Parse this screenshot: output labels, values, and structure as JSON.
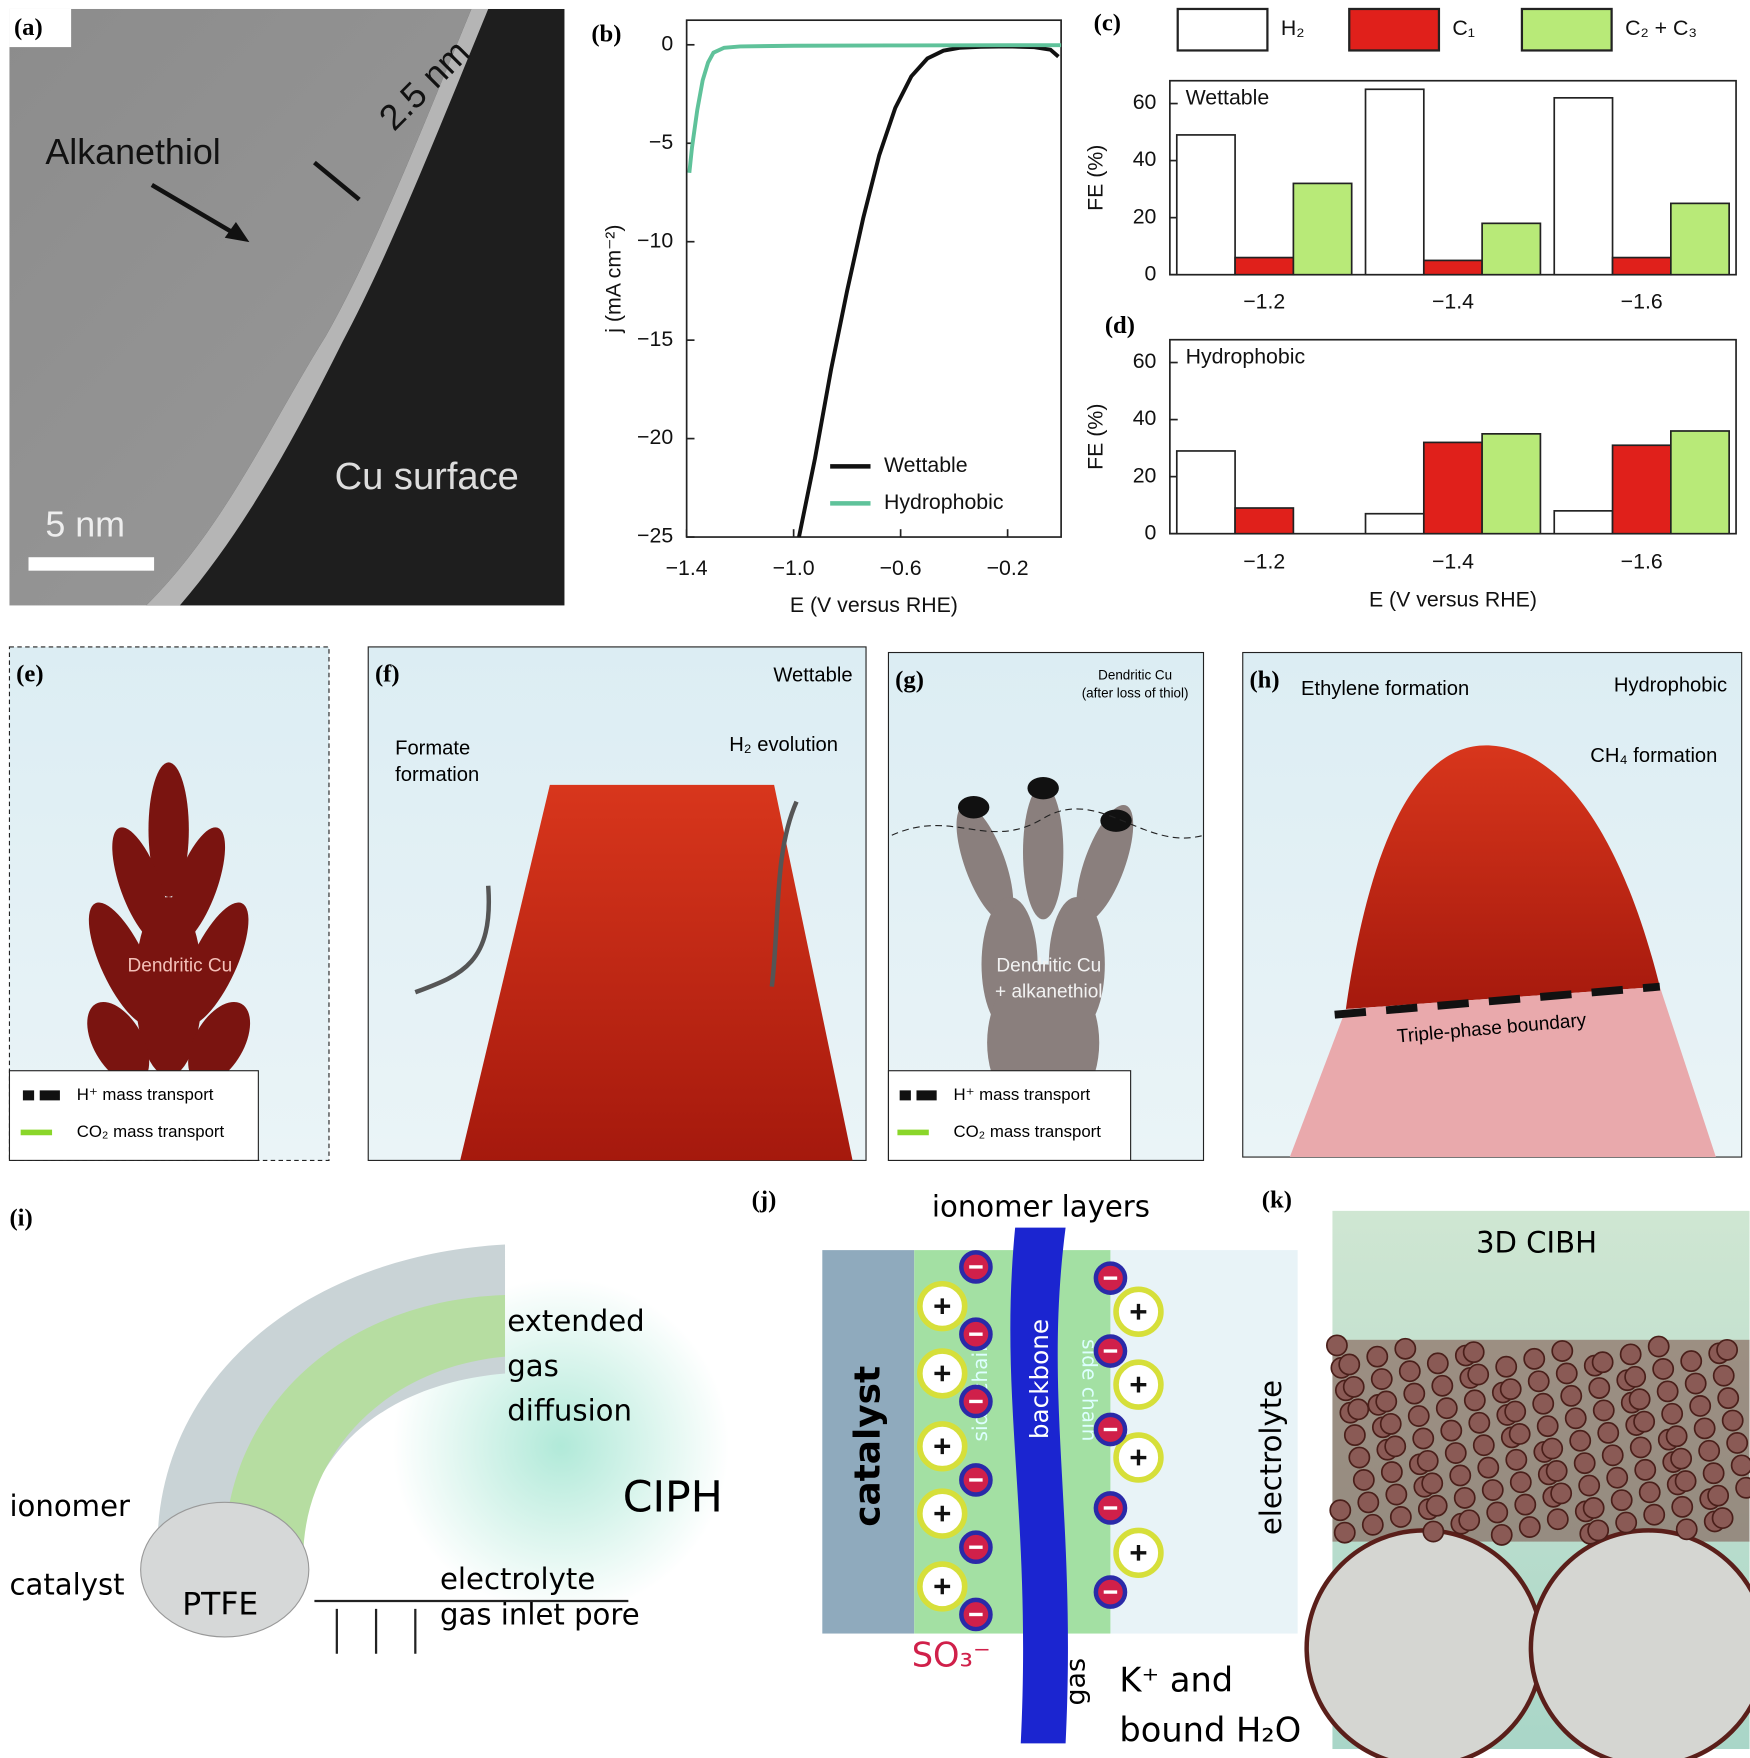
{
  "chart_data": [
    {
      "type": "line",
      "xlim": [
        -1.4,
        0
      ],
      "ylim": [
        -25,
        1.25
      ],
      "xticks": [
        {
          "value": -1.4,
          "label": "−1.4"
        },
        {
          "value": -1.0,
          "label": "−1.0"
        },
        {
          "value": -0.6,
          "label": "−0.6"
        },
        {
          "value": -0.2,
          "label": "−0.2"
        }
      ],
      "yticks": [
        0,
        {
          "value": -5,
          "label": "−5"
        },
        {
          "value": -10,
          "label": "−10"
        },
        {
          "value": -15,
          "label": "−15"
        },
        {
          "value": -20,
          "label": "−20"
        },
        {
          "value": -25,
          "label": "−25"
        }
      ],
      "xlabel": "E (V versus RHE)",
      "ylabel": "j (mA cm⁻²)",
      "series": [
        {
          "name": "Wettable",
          "color": "#111111",
          "x": [
            -0.98,
            -0.92,
            -0.86,
            -0.8,
            -0.74,
            -0.68,
            -0.62,
            -0.56,
            -0.5,
            -0.44,
            -0.38,
            -0.3,
            -0.2,
            -0.1,
            -0.04,
            -0.01
          ],
          "values": [
            -25,
            -21,
            -16.5,
            -12.5,
            -8.8,
            -5.6,
            -3.2,
            -1.6,
            -0.7,
            -0.3,
            -0.15,
            -0.1,
            -0.08,
            -0.12,
            -0.25,
            -0.6
          ]
        },
        {
          "name": "Hydrophobic",
          "color": "#5fc29a",
          "x": [
            -1.39,
            -1.38,
            -1.36,
            -1.34,
            -1.32,
            -1.3,
            -1.26,
            -1.2,
            -1.0,
            -0.6,
            -0.2,
            0
          ],
          "values": [
            -6.5,
            -5.2,
            -3.3,
            -1.8,
            -0.9,
            -0.4,
            -0.15,
            -0.08,
            -0.05,
            -0.03,
            -0.02,
            -0.02
          ]
        }
      ]
    },
    {
      "type": "bar",
      "annotation": "Wettable",
      "ylabel": "FE (%)",
      "ylim": [
        0,
        68
      ],
      "yticks": [
        0,
        20,
        40,
        60
      ],
      "categories": [
        "−1.2",
        "−1.4",
        "−1.6"
      ],
      "series": [
        {
          "name": "H₂",
          "color": "#ffffff",
          "values": [
            49,
            65,
            62
          ]
        },
        {
          "name": "C₁",
          "color": "#e0201b",
          "values": [
            6,
            5,
            6
          ]
        },
        {
          "name": "C₂ + C₃",
          "color": "#b8ea78",
          "values": [
            32,
            18,
            25
          ]
        }
      ]
    },
    {
      "type": "bar",
      "annotation": "Hydrophobic",
      "ylabel": "FE (%)",
      "xlabel": "E (V versus RHE)",
      "ylim": [
        0,
        68
      ],
      "yticks": [
        0,
        20,
        40,
        60
      ],
      "categories": [
        "−1.2",
        "−1.4",
        "−1.6"
      ],
      "series": [
        {
          "color": "#ffffff",
          "values": [
            29,
            7,
            8
          ]
        },
        {
          "color": "#e0201b",
          "values": [
            9,
            32,
            31
          ]
        },
        {
          "color": "#b8ea78",
          "values": [
            null,
            35,
            36
          ]
        }
      ]
    }
  ],
  "panels": {
    "a": {
      "label": "(a)",
      "thiol": "Alkanethiol",
      "thickness": "2.5 nm",
      "surface": "Cu surface",
      "scale": "5 nm"
    },
    "b": {
      "label": "(b)"
    },
    "c": {
      "label": "(c)"
    },
    "d": {
      "label": "(d)"
    },
    "e": {
      "label": "(e)",
      "dendrite": "Dendritic Cu",
      "h_legend": "H⁺ mass transport",
      "co2_legend": "CO₂ mass transport"
    },
    "f": {
      "label": "(f)",
      "mode": "Wettable",
      "formate": [
        "Formate",
        "formation"
      ],
      "h2": "H₂ evolution"
    },
    "g": {
      "label": "(g)",
      "top": [
        "Dendritic Cu",
        "(after loss of thiol)"
      ],
      "dendrite": [
        "Dendritic Cu",
        "+ alkanethiol"
      ],
      "h_legend": "H⁺ mass transport",
      "co2_legend": "CO₂ mass transport"
    },
    "h": {
      "label": "(h)",
      "ethylene": "Ethylene formation",
      "mode": "Hydrophobic",
      "ch4": "CH₄ formation",
      "boundary": "Triple-phase boundary"
    },
    "i": {
      "label": "(i)",
      "diffusion": [
        "extended",
        "gas",
        "diffusion"
      ],
      "ionomer": "ionomer",
      "catalyst": "catalyst",
      "ptfe": "PTFE",
      "name": "CIPH",
      "electrolyte": "electrolyte",
      "pore": "gas inlet pore"
    },
    "j": {
      "label": "(j)",
      "layers": "ionomer layers",
      "catalyst": "catalyst",
      "backbone": "backbone",
      "side1": "side chain",
      "side2": "side chain",
      "electrolyte": "electrolyte",
      "so3": "SO₃⁻",
      "gas": "gas",
      "kplus": "K⁺ and",
      "water": "bound H₂O"
    },
    "k": {
      "label": "(k)",
      "name": "3D CIBH"
    }
  }
}
